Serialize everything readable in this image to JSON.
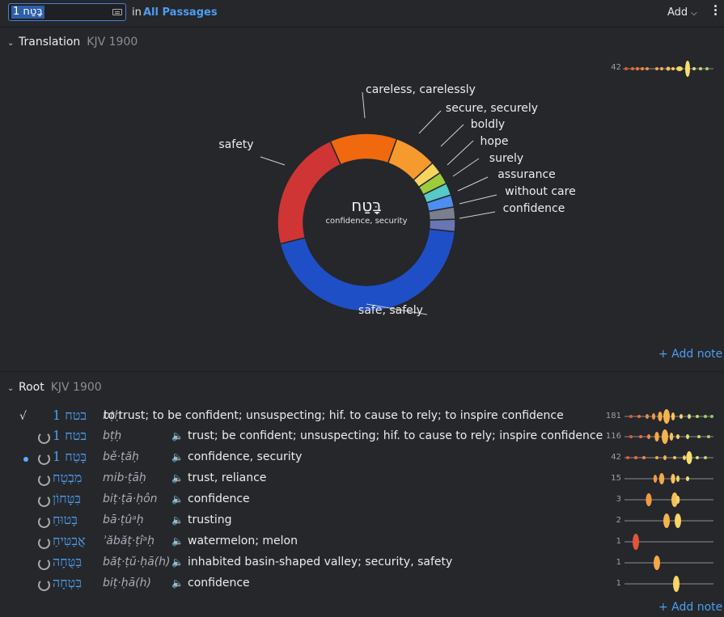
{
  "search": {
    "value": "1 בָּטַח",
    "in_label": "in",
    "scope": "All Passages"
  },
  "toolbar": {
    "add_label": "Add"
  },
  "translation_section": {
    "title": "Translation",
    "version": "KJV 1900",
    "add_note": "+ Add note",
    "sparkline_count": "42"
  },
  "chart_data": {
    "type": "pie",
    "center_title": "בָּטַח",
    "center_subtitle": "confidence, security",
    "categories": [
      "safe, safely",
      "safety",
      "careless, carelessly",
      "secure, securely",
      "boldly",
      "hope",
      "surely",
      "assurance",
      "without care",
      "confidence"
    ],
    "values": [
      40,
      20,
      11,
      7,
      2,
      2,
      2,
      2,
      2,
      2
    ],
    "colors": [
      "#1f4fc6",
      "#cf3535",
      "#f0690f",
      "#f69a2e",
      "#f6d45e",
      "#9ccc3c",
      "#56c9c8",
      "#4d8ff0",
      "#7a7f8f",
      "#6a76b4"
    ]
  },
  "root_section": {
    "title": "Root",
    "version": "KJV 1900",
    "add_note": "+ Add note",
    "rows": [
      {
        "hebrew": "בטח 1",
        "translit": "bṭḥ",
        "gloss": "to trust; to be confident; unsuspecting; hif. to cause to rely; to inspire confidence",
        "count": "181"
      },
      {
        "hebrew": "בטח 1",
        "translit": "bṭḥ",
        "gloss": "trust; be confident; unsuspecting; hif. to cause to rely; inspire confidence",
        "count": "116"
      },
      {
        "hebrew": "בָּטַח 1",
        "translit": "bě·ṭăḥ",
        "gloss": "confidence, security",
        "count": "42"
      },
      {
        "hebrew": "מִבְטָח",
        "translit": "mib·ṭāḥ",
        "gloss": "trust, reliance",
        "count": "15"
      },
      {
        "hebrew": "בִּטָּחוֹן",
        "translit": "biṭ·ṭā·ḥôn",
        "gloss": "confidence",
        "count": "3"
      },
      {
        "hebrew": "בָּטוּחַ",
        "translit": "bā·ṭûᵃḥ",
        "gloss": "trusting",
        "count": "2"
      },
      {
        "hebrew": "אֲבַטִּיחַ",
        "translit": "ʾăbăṭ·ṭîᵃḥ",
        "gloss": "watermelon; melon",
        "count": "1"
      },
      {
        "hebrew": "בַּטֻּחָה",
        "translit": "băṭ·ṭŭ·ḥā(h)",
        "gloss": "inhabited basin-shaped valley; security, safety",
        "count": "1"
      },
      {
        "hebrew": "בִּטְחָה",
        "translit": "biṭ·ḥā(h)",
        "gloss": "confidence",
        "count": "1"
      }
    ]
  }
}
